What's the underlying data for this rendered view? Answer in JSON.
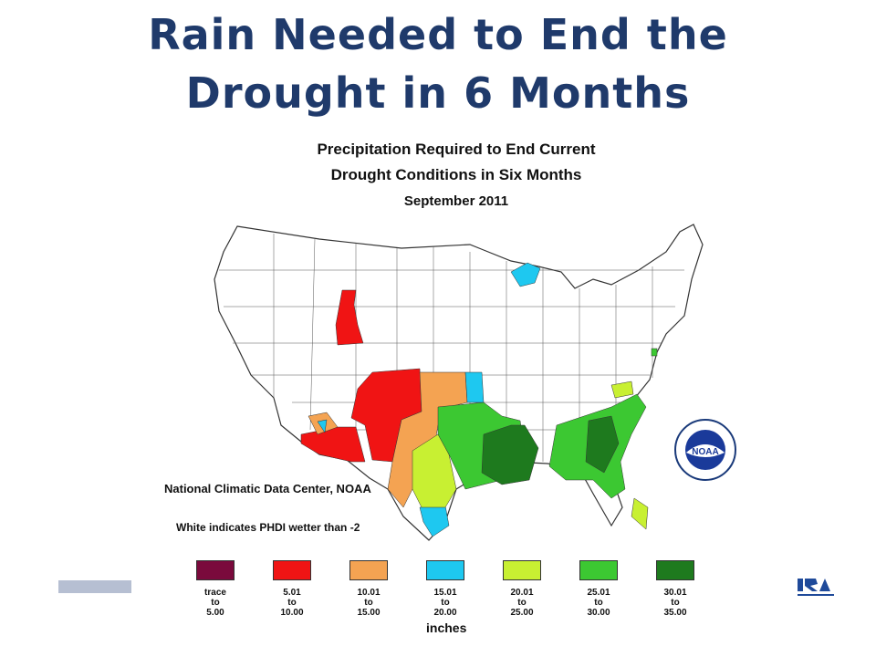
{
  "slide": {
    "title_line1": "Rain Needed to End the",
    "title_line2": "Drought in 6 Months"
  },
  "map": {
    "title_line1": "Precipitation Required to End Current",
    "title_line2": "Drought Conditions in Six Months",
    "date": "September 2011",
    "credit": "National Climatic Data Center, NOAA",
    "note": "White indicates PHDI wetter than -2",
    "legend_units": "inches",
    "legend": [
      {
        "line1": "trace",
        "line2": "to",
        "line3": "5.00",
        "color": "#7a0a3c"
      },
      {
        "line1": "5.01",
        "line2": "to",
        "line3": "10.00",
        "color": "#f01414"
      },
      {
        "line1": "10.01",
        "line2": "to",
        "line3": "15.00",
        "color": "#f4a352"
      },
      {
        "line1": "15.01",
        "line2": "to",
        "line3": "20.00",
        "color": "#1ec8f0"
      },
      {
        "line1": "20.01",
        "line2": "to",
        "line3": "25.00",
        "color": "#c8f032"
      },
      {
        "line1": "25.01",
        "line2": "to",
        "line3": "30.00",
        "color": "#3cc832"
      },
      {
        "line1": "30.01",
        "line2": "to",
        "line3": "35.00",
        "color": "#1e7a1e"
      }
    ],
    "seal_text": "NOAA"
  },
  "colors": {
    "title": "#1f3a6b",
    "white_region": "#ffffff",
    "border": "#444444"
  }
}
